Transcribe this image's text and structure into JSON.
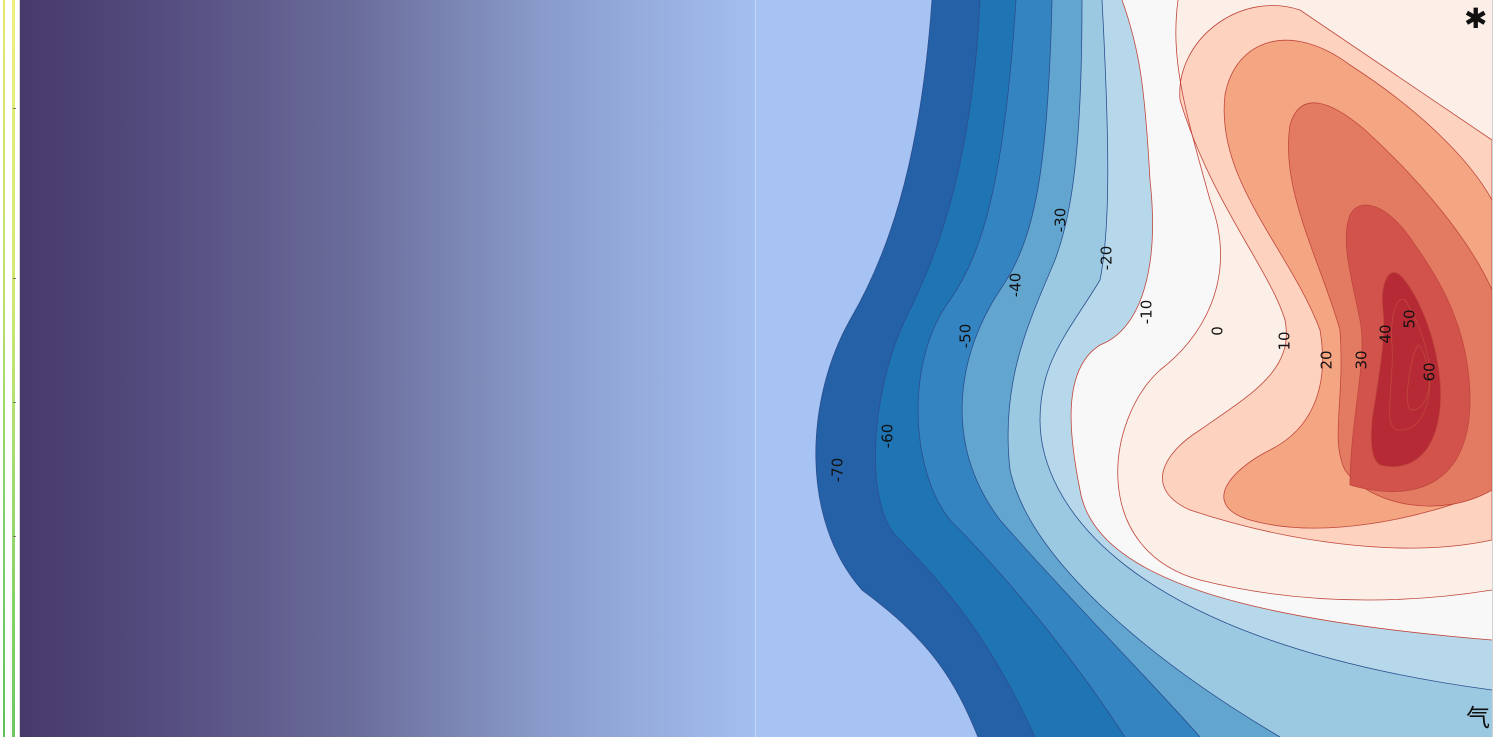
{
  "chart_data": {
    "type": "contour",
    "levels": [
      -70,
      -60,
      -50,
      -40,
      -30,
      -20,
      -10,
      0,
      10,
      20,
      30,
      40,
      50,
      60
    ],
    "contour_labels": [
      "-70",
      "-60",
      "-50",
      "-40",
      "-30",
      "-20",
      "-10",
      "0",
      "10",
      "20",
      "30",
      "40",
      "50",
      "60"
    ],
    "colormap": "RdBu_r",
    "fill_colors": [
      "#a6c3f3",
      "#2561a7",
      "#1f74b4",
      "#3484c1",
      "#62a6d0",
      "#9cc9e2",
      "#b7d8ea",
      "#d9ebf4",
      "#f8f8f8",
      "#fbefe7",
      "#fdd2bf",
      "#f4a582",
      "#e37b63",
      "#d2534c",
      "#b62a35"
    ],
    "line_colors": {
      "negative": "#2b4f8f",
      "positive": "#c0473c"
    },
    "grid": false,
    "legend": "none"
  },
  "corner_icons": {
    "top_right": "✱",
    "bottom_right": "气"
  },
  "icons": {
    "top_right": "asterisk-icon",
    "bottom_right": "qi-glyph-icon"
  }
}
